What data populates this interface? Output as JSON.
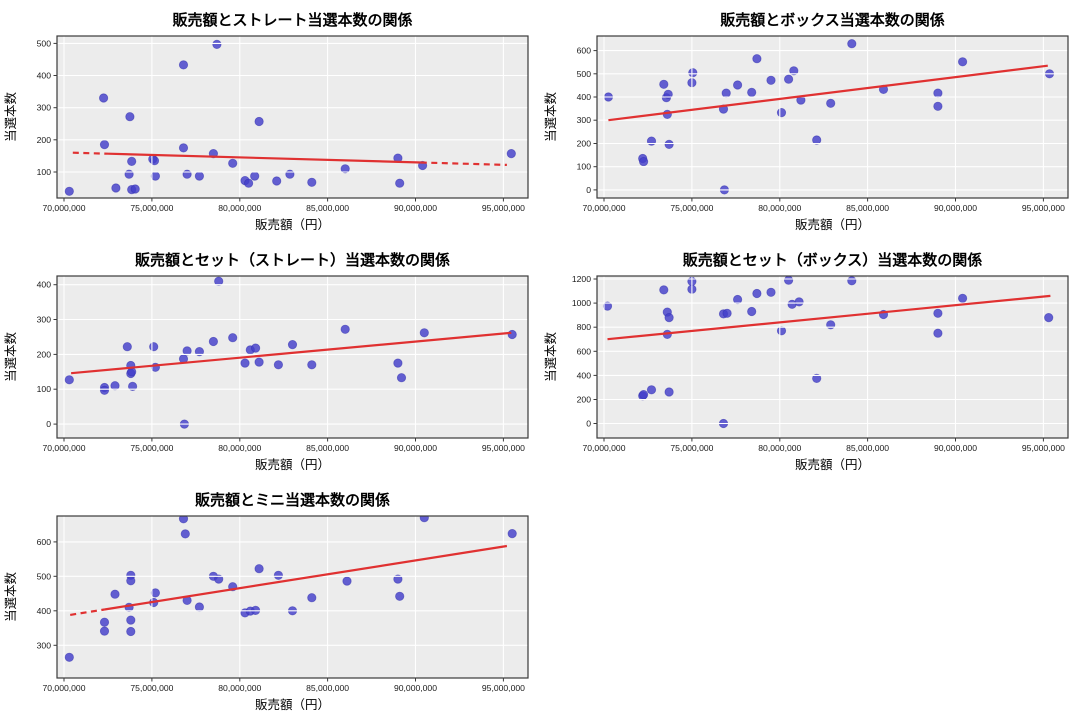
{
  "page": {
    "background": "#ffffff"
  },
  "style": {
    "plot_bg": "#ececec",
    "grid_color": "#ffffff",
    "marker_color": "#433ec9",
    "marker_edge": "#322fae",
    "marker_opacity": 0.82,
    "trend_color": "#e03131",
    "spine_color": "#3a3a3a",
    "text_color": "#1a1a1a"
  },
  "axes_shared": {
    "xlabel": "販売額（円）",
    "ylabel": "当選本数",
    "xlim": [
      69600000,
      96400000
    ],
    "x_ticks": [
      70000000,
      75000000,
      80000000,
      85000000,
      90000000,
      95000000
    ],
    "x_tick_labels": [
      "70,000,000",
      "75,000,000",
      "80,000,000",
      "85,000,000",
      "90,000,000",
      "95,000,000"
    ],
    "grid": true,
    "grid_above_points": true
  },
  "chart_data": [
    {
      "type": "scatter",
      "title": "販売額とストレート当選本数の関係",
      "xlabel": "販売額（円）",
      "ylabel": "当選本数",
      "ylim": [
        19,
        523
      ],
      "y_ticks": [
        100,
        200,
        300,
        400,
        500
      ],
      "y_tick_labels": [
        "100",
        "200",
        "300",
        "400",
        "500"
      ],
      "points": [
        [
          70300000,
          40
        ],
        [
          72250000,
          330
        ],
        [
          72300000,
          185
        ],
        [
          72950000,
          50
        ],
        [
          73750000,
          272
        ],
        [
          73700000,
          93
        ],
        [
          73850000,
          133
        ],
        [
          73850000,
          45
        ],
        [
          74050000,
          47
        ],
        [
          75050000,
          140
        ],
        [
          75150000,
          135
        ],
        [
          75200000,
          87
        ],
        [
          76800000,
          433
        ],
        [
          76800000,
          175
        ],
        [
          77000000,
          93
        ],
        [
          77700000,
          87
        ],
        [
          78500000,
          157
        ],
        [
          78700000,
          497
        ],
        [
          79600000,
          127
        ],
        [
          80300000,
          73
        ],
        [
          80500000,
          65
        ],
        [
          80850000,
          87
        ],
        [
          81100000,
          257
        ],
        [
          82100000,
          72
        ],
        [
          82850000,
          93
        ],
        [
          84100000,
          68
        ],
        [
          86000000,
          110
        ],
        [
          89000000,
          143
        ],
        [
          89100000,
          65
        ],
        [
          90400000,
          120
        ],
        [
          95450000,
          157
        ]
      ],
      "trend": {
        "x1": 70500000,
        "y1": 160,
        "x2": 95200000,
        "y2": 122,
        "solid_from": 72500000,
        "solid_to": 90300000
      }
    },
    {
      "type": "scatter",
      "title": "販売額とボックス当選本数の関係",
      "xlabel": "販売額（円）",
      "ylabel": "当選本数",
      "ylim": [
        -35,
        663
      ],
      "y_ticks": [
        0,
        100,
        200,
        300,
        400,
        500,
        600
      ],
      "y_tick_labels": [
        "0",
        "100",
        "200",
        "300",
        "400",
        "500",
        "600"
      ],
      "points": [
        [
          70250000,
          400
        ],
        [
          72200000,
          135
        ],
        [
          72250000,
          122
        ],
        [
          72700000,
          210
        ],
        [
          73400000,
          455
        ],
        [
          73550000,
          397
        ],
        [
          73650000,
          412
        ],
        [
          73600000,
          325
        ],
        [
          73700000,
          196
        ],
        [
          75050000,
          505
        ],
        [
          75000000,
          462
        ],
        [
          76800000,
          348
        ],
        [
          76850000,
          0
        ],
        [
          76950000,
          417
        ],
        [
          77600000,
          452
        ],
        [
          78400000,
          420
        ],
        [
          78700000,
          565
        ],
        [
          79500000,
          472
        ],
        [
          80100000,
          333
        ],
        [
          80500000,
          477
        ],
        [
          80800000,
          513
        ],
        [
          81200000,
          387
        ],
        [
          82100000,
          215
        ],
        [
          82900000,
          373
        ],
        [
          84100000,
          630
        ],
        [
          85900000,
          433
        ],
        [
          89000000,
          417
        ],
        [
          89000000,
          360
        ],
        [
          90400000,
          552
        ],
        [
          95350000,
          500
        ]
      ],
      "trend": {
        "x1": 70250000,
        "y1": 300,
        "x2": 95250000,
        "y2": 535,
        "solid_from": 70250000,
        "solid_to": 95250000
      }
    },
    {
      "type": "scatter",
      "title": "販売額とセット（ストレート）当選本数の関係",
      "xlabel": "販売額（円）",
      "ylabel": "当選本数",
      "ylim": [
        -40,
        425
      ],
      "y_ticks": [
        0,
        100,
        200,
        300,
        400
      ],
      "y_tick_labels": [
        "0",
        "100",
        "200",
        "300",
        "400"
      ],
      "points": [
        [
          70300000,
          127
        ],
        [
          72300000,
          105
        ],
        [
          72300000,
          97
        ],
        [
          72900000,
          110
        ],
        [
          73600000,
          222
        ],
        [
          73800000,
          168
        ],
        [
          73800000,
          145
        ],
        [
          73850000,
          150
        ],
        [
          73900000,
          108
        ],
        [
          75100000,
          222
        ],
        [
          75200000,
          163
        ],
        [
          76800000,
          187
        ],
        [
          76850000,
          0
        ],
        [
          77000000,
          210
        ],
        [
          77700000,
          208
        ],
        [
          78500000,
          237
        ],
        [
          78800000,
          410
        ],
        [
          79600000,
          248
        ],
        [
          80300000,
          175
        ],
        [
          80600000,
          213
        ],
        [
          80900000,
          218
        ],
        [
          81100000,
          178
        ],
        [
          82200000,
          170
        ],
        [
          83000000,
          228
        ],
        [
          84100000,
          170
        ],
        [
          86000000,
          272
        ],
        [
          89000000,
          175
        ],
        [
          89200000,
          133
        ],
        [
          90500000,
          262
        ],
        [
          95500000,
          257
        ]
      ],
      "trend": {
        "x1": 70400000,
        "y1": 146,
        "x2": 95450000,
        "y2": 262,
        "solid_from": 70400000,
        "solid_to": 95450000
      }
    },
    {
      "type": "scatter",
      "title": "販売額とセット（ボックス）当選本数の関係",
      "xlabel": "販売額（円）",
      "ylabel": "当選本数",
      "ylim": [
        -120,
        1225
      ],
      "y_ticks": [
        0,
        200,
        400,
        600,
        800,
        1000,
        1200
      ],
      "y_tick_labels": [
        "0",
        "200",
        "400",
        "600",
        "800",
        "1000",
        "1200"
      ],
      "points": [
        [
          70200000,
          975
        ],
        [
          72200000,
          230
        ],
        [
          72250000,
          240
        ],
        [
          72700000,
          280
        ],
        [
          73400000,
          1110
        ],
        [
          73600000,
          740
        ],
        [
          73600000,
          925
        ],
        [
          73700000,
          880
        ],
        [
          73700000,
          262
        ],
        [
          75000000,
          1180
        ],
        [
          75000000,
          1115
        ],
        [
          76800000,
          910
        ],
        [
          76800000,
          0
        ],
        [
          77000000,
          915
        ],
        [
          77600000,
          1030
        ],
        [
          78400000,
          930
        ],
        [
          78700000,
          1080
        ],
        [
          79500000,
          1090
        ],
        [
          80100000,
          770
        ],
        [
          80500000,
          1190
        ],
        [
          80700000,
          990
        ],
        [
          81100000,
          1010
        ],
        [
          82100000,
          375
        ],
        [
          82900000,
          820
        ],
        [
          84100000,
          1185
        ],
        [
          85900000,
          905
        ],
        [
          89000000,
          915
        ],
        [
          89000000,
          750
        ],
        [
          90400000,
          1040
        ],
        [
          95300000,
          880
        ]
      ],
      "trend": {
        "x1": 70200000,
        "y1": 700,
        "x2": 95400000,
        "y2": 1060,
        "solid_from": 70200000,
        "solid_to": 95400000
      }
    },
    {
      "type": "scatter",
      "title": "販売額とミニ当選本数の関係",
      "xlabel": "販売額（円）",
      "ylabel": "当選本数",
      "ylim": [
        205,
        675
      ],
      "y_ticks": [
        300,
        400,
        500,
        600
      ],
      "y_tick_labels": [
        "300",
        "400",
        "500",
        "600"
      ],
      "points": [
        [
          70300000,
          265
        ],
        [
          72300000,
          367
        ],
        [
          72300000,
          341
        ],
        [
          72900000,
          448
        ],
        [
          73800000,
          503
        ],
        [
          73800000,
          487
        ],
        [
          73700000,
          410
        ],
        [
          73800000,
          373
        ],
        [
          73800000,
          340
        ],
        [
          75100000,
          424
        ],
        [
          75200000,
          452
        ],
        [
          76800000,
          667
        ],
        [
          76900000,
          623
        ],
        [
          77000000,
          430
        ],
        [
          77700000,
          411
        ],
        [
          78500000,
          500
        ],
        [
          78800000,
          492
        ],
        [
          79600000,
          470
        ],
        [
          80300000,
          394
        ],
        [
          80600000,
          399
        ],
        [
          80900000,
          401
        ],
        [
          81100000,
          522
        ],
        [
          82200000,
          503
        ],
        [
          83000000,
          400
        ],
        [
          84100000,
          438
        ],
        [
          86100000,
          486
        ],
        [
          89000000,
          492
        ],
        [
          89100000,
          442
        ],
        [
          90500000,
          670
        ],
        [
          95500000,
          624
        ]
      ],
      "trend": {
        "x1": 70350000,
        "y1": 388,
        "x2": 95200000,
        "y2": 588,
        "solid_from": 72300000,
        "solid_to": 95200000
      }
    }
  ]
}
